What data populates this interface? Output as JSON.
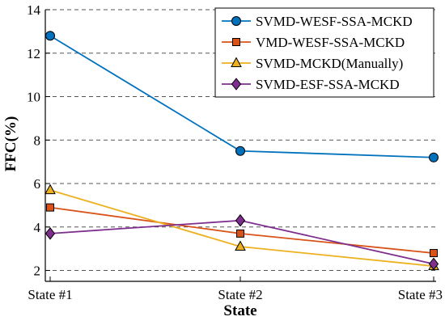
{
  "chart_data": {
    "type": "line",
    "title": "",
    "xlabel": "State",
    "ylabel": "FFC(%)",
    "categories": [
      "State #1",
      "State #2",
      "State #3"
    ],
    "ylim": [
      1.5,
      14
    ],
    "yticks": [
      2,
      4,
      6,
      8,
      10,
      12,
      14
    ],
    "grid": "horizontal dashed",
    "legend_position": "top-right",
    "series": [
      {
        "name": "SVMD-WESF-SSA-MCKD",
        "values": [
          12.8,
          7.5,
          7.2
        ],
        "color": "#0072BD",
        "marker": "circle"
      },
      {
        "name": "VMD-WESF-SSA-MCKD",
        "values": [
          4.9,
          3.7,
          2.8
        ],
        "color": "#D95319",
        "marker": "square"
      },
      {
        "name": "SVMD-MCKD(Manually)",
        "values": [
          5.7,
          3.1,
          2.2
        ],
        "color": "#EDB120",
        "marker": "triangle"
      },
      {
        "name": "SVMD-ESF-SSA-MCKD",
        "values": [
          3.7,
          4.3,
          2.3
        ],
        "color": "#7E2F8E",
        "marker": "diamond"
      }
    ]
  }
}
